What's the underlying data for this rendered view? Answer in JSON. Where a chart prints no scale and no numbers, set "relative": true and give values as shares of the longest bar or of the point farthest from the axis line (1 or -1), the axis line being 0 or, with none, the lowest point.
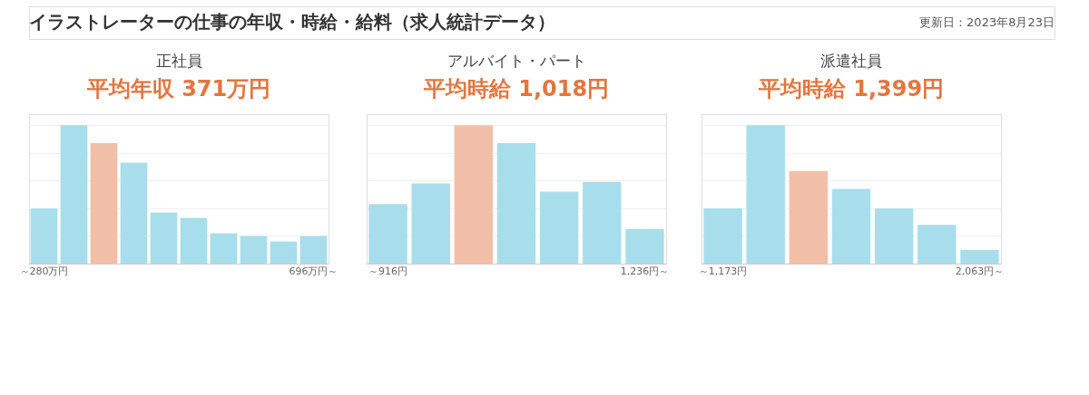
{
  "chart_data": [
    {
      "type": "bar",
      "relative": true,
      "title": "正社員",
      "subtitle": "平均年収 371万円",
      "grid": "y",
      "annotations": [
        "イラストレーターの仕事の年収・時給・給料（求人統計データ）",
        "更新日：2023年8月23日"
      ],
      "categories": [
        "～280万円",
        null,
        null,
        null,
        null,
        null,
        null,
        null,
        null,
        "696万円～"
      ],
      "values": [
        0.4,
        1,
        0.87,
        0.73,
        0.37,
        0.33,
        0.22,
        0.2,
        0.16,
        0.2
      ],
      "colors": [
        "#a3dcea",
        "#a3dcea",
        "#f0bca2",
        "#a3dcea",
        "#a3dcea",
        "#a3dcea",
        "#a3dcea",
        "#a3dcea",
        "#a3dcea",
        "#a3dcea"
      ]
    },
    {
      "type": "bar",
      "relative": true,
      "title": "アルバイト・パート",
      "subtitle": "平均時給 1,018円",
      "grid": "y",
      "categories": [
        "～916円",
        null,
        null,
        null,
        null,
        null,
        "1,236円～"
      ],
      "values": [
        0.43,
        0.58,
        1,
        0.87,
        0.52,
        0.59,
        0.25
      ],
      "colors": [
        "#a3dcea",
        "#a3dcea",
        "#f0bca2",
        "#a3dcea",
        "#a3dcea",
        "#a3dcea",
        "#a3dcea"
      ]
    },
    {
      "type": "bar",
      "relative": true,
      "title": "派遣社員",
      "subtitle": "平均時給 1,399円",
      "grid": "y",
      "categories": [
        "～1,173円",
        null,
        null,
        null,
        null,
        null,
        "2,063円～"
      ],
      "values": [
        0.4,
        1,
        0.67,
        0.54,
        0.4,
        0.28,
        0.1
      ],
      "colors": [
        "#a3dcea",
        "#a3dcea",
        "#f0bca2",
        "#a3dcea",
        "#a3dcea",
        "#a3dcea",
        "#a3dcea"
      ]
    }
  ]
}
